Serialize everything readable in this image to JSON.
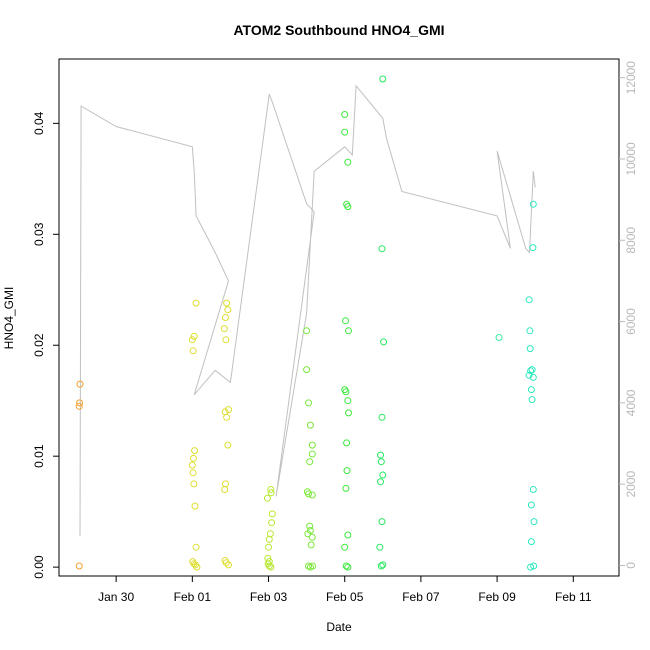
{
  "chart_data": {
    "type": "scatter",
    "title": "ATOM2 Southbound HNO4_GMI",
    "xlabel": "Date",
    "ylabel": "HNO4_GMI",
    "x_unit": "days from Jan 30",
    "x_ticks": [
      {
        "label": "Jan 30",
        "value": 0
      },
      {
        "label": "Feb 01",
        "value": 2
      },
      {
        "label": "Feb 03",
        "value": 4
      },
      {
        "label": "Feb 05",
        "value": 6
      },
      {
        "label": "Feb 07",
        "value": 8
      },
      {
        "label": "Feb 09",
        "value": 10
      },
      {
        "label": "Feb 11",
        "value": 12
      }
    ],
    "ylim": [
      -0.0008,
      0.0458
    ],
    "y_ticks": [
      0.0,
      0.01,
      0.02,
      0.03,
      0.04
    ],
    "y_tick_labels": [
      "0.00",
      "0.01",
      "0.02",
      "0.03",
      "0.04"
    ],
    "y2lim": [
      -260,
      12460
    ],
    "y2_ticks": [
      0,
      2000,
      4000,
      6000,
      8000,
      10000,
      12000
    ],
    "y2_tick_labels": [
      "0",
      "2000",
      "4000",
      "6000",
      "8000",
      "10000",
      "12000"
    ],
    "grid": false,
    "colors": {
      "line": "#c0c0c0",
      "right_axis": "#b8b8b8",
      "axis": "#000000"
    },
    "points": [
      {
        "x": -0.97,
        "y": 0.0145,
        "color": "#f5a030"
      },
      {
        "x": -0.96,
        "y": 0.0148,
        "color": "#f5a030"
      },
      {
        "x": -0.95,
        "y": 0.0165,
        "color": "#f5a030"
      },
      {
        "x": -0.97,
        "y": 0.0001,
        "color": "#f5a030"
      },
      {
        "x": 2.0,
        "y": 0.0205,
        "color": "#dede33"
      },
      {
        "x": 2.02,
        "y": 0.0195,
        "color": "#dede33"
      },
      {
        "x": 2.05,
        "y": 0.0208,
        "color": "#dede33"
      },
      {
        "x": 2.1,
        "y": 0.0238,
        "color": "#dede33"
      },
      {
        "x": 2.06,
        "y": 0.0105,
        "color": "#dede33"
      },
      {
        "x": 2.03,
        "y": 0.0098,
        "color": "#dede33"
      },
      {
        "x": 2.0,
        "y": 0.0092,
        "color": "#dede33"
      },
      {
        "x": 2.02,
        "y": 0.0085,
        "color": "#dede33"
      },
      {
        "x": 2.04,
        "y": 0.0075,
        "color": "#dede33"
      },
      {
        "x": 2.07,
        "y": 0.0055,
        "color": "#dede33"
      },
      {
        "x": 2.1,
        "y": 0.0018,
        "color": "#dede33"
      },
      {
        "x": 2.01,
        "y": 0.0005,
        "color": "#dede33"
      },
      {
        "x": 2.04,
        "y": 0.0003,
        "color": "#dede33"
      },
      {
        "x": 2.08,
        "y": 0.0002,
        "color": "#dede33"
      },
      {
        "x": 2.12,
        "y": 0.0,
        "color": "#dede33"
      },
      {
        "x": 2.84,
        "y": 0.0215,
        "color": "#dede33"
      },
      {
        "x": 2.87,
        "y": 0.0225,
        "color": "#dede33"
      },
      {
        "x": 2.9,
        "y": 0.0238,
        "color": "#dede33"
      },
      {
        "x": 2.93,
        "y": 0.0232,
        "color": "#dede33"
      },
      {
        "x": 2.88,
        "y": 0.0205,
        "color": "#dede33"
      },
      {
        "x": 2.86,
        "y": 0.014,
        "color": "#dede33"
      },
      {
        "x": 2.9,
        "y": 0.0135,
        "color": "#dede33"
      },
      {
        "x": 2.95,
        "y": 0.0142,
        "color": "#dede33"
      },
      {
        "x": 2.93,
        "y": 0.011,
        "color": "#dede33"
      },
      {
        "x": 2.87,
        "y": 0.0075,
        "color": "#dede33"
      },
      {
        "x": 2.85,
        "y": 0.007,
        "color": "#dede33"
      },
      {
        "x": 2.86,
        "y": 0.0006,
        "color": "#dede33"
      },
      {
        "x": 2.89,
        "y": 0.0004,
        "color": "#dede33"
      },
      {
        "x": 2.95,
        "y": 0.0002,
        "color": "#dede33"
      },
      {
        "x": 3.97,
        "y": 0.0062,
        "color": "#b8e830"
      },
      {
        "x": 4.06,
        "y": 0.007,
        "color": "#b8e830"
      },
      {
        "x": 4.07,
        "y": 0.0067,
        "color": "#b8e830"
      },
      {
        "x": 4.1,
        "y": 0.0048,
        "color": "#b8e830"
      },
      {
        "x": 4.08,
        "y": 0.004,
        "color": "#b8e830"
      },
      {
        "x": 4.05,
        "y": 0.003,
        "color": "#b8e830"
      },
      {
        "x": 4.02,
        "y": 0.0025,
        "color": "#b8e830"
      },
      {
        "x": 4.0,
        "y": 0.0018,
        "color": "#b8e830"
      },
      {
        "x": 3.98,
        "y": 0.0008,
        "color": "#b8e830"
      },
      {
        "x": 3.99,
        "y": 0.0003,
        "color": "#b8e830"
      },
      {
        "x": 4.02,
        "y": 0.0001,
        "color": "#b8e830"
      },
      {
        "x": 4.06,
        "y": 0.0,
        "color": "#b8e830"
      },
      {
        "x": 4.02,
        "y": 0.0005,
        "color": "#b8e830"
      },
      {
        "x": 5.0,
        "y": 0.0213,
        "color": "#7ae83a"
      },
      {
        "x": 5.0,
        "y": 0.0178,
        "color": "#7ae83a"
      },
      {
        "x": 5.05,
        "y": 0.0148,
        "color": "#7ae83a"
      },
      {
        "x": 5.1,
        "y": 0.0128,
        "color": "#7ae83a"
      },
      {
        "x": 5.15,
        "y": 0.011,
        "color": "#7ae83a"
      },
      {
        "x": 5.15,
        "y": 0.0102,
        "color": "#7ae83a"
      },
      {
        "x": 5.08,
        "y": 0.0095,
        "color": "#7ae83a"
      },
      {
        "x": 5.02,
        "y": 0.0068,
        "color": "#7ae83a"
      },
      {
        "x": 5.05,
        "y": 0.0066,
        "color": "#7ae83a"
      },
      {
        "x": 5.15,
        "y": 0.0065,
        "color": "#7ae83a"
      },
      {
        "x": 5.08,
        "y": 0.0037,
        "color": "#7ae83a"
      },
      {
        "x": 5.1,
        "y": 0.0033,
        "color": "#7ae83a"
      },
      {
        "x": 5.03,
        "y": 0.003,
        "color": "#7ae83a"
      },
      {
        "x": 5.15,
        "y": 0.0027,
        "color": "#7ae83a"
      },
      {
        "x": 5.12,
        "y": 0.002,
        "color": "#7ae83a"
      },
      {
        "x": 5.05,
        "y": 0.0001,
        "color": "#7ae83a"
      },
      {
        "x": 5.1,
        "y": 0.0,
        "color": "#7ae83a"
      },
      {
        "x": 5.16,
        "y": 0.0001,
        "color": "#7ae83a"
      },
      {
        "x": 6.0,
        "y": 0.0408,
        "color": "#3de83d"
      },
      {
        "x": 6.0,
        "y": 0.0392,
        "color": "#3de83d"
      },
      {
        "x": 6.08,
        "y": 0.0365,
        "color": "#3de83d"
      },
      {
        "x": 6.05,
        "y": 0.0327,
        "color": "#3de83d"
      },
      {
        "x": 6.08,
        "y": 0.0325,
        "color": "#3de83d"
      },
      {
        "x": 6.02,
        "y": 0.0222,
        "color": "#3de83d"
      },
      {
        "x": 6.1,
        "y": 0.0213,
        "color": "#3de83d"
      },
      {
        "x": 6.0,
        "y": 0.016,
        "color": "#3de83d"
      },
      {
        "x": 6.03,
        "y": 0.0158,
        "color": "#3de83d"
      },
      {
        "x": 6.08,
        "y": 0.015,
        "color": "#3de83d"
      },
      {
        "x": 6.1,
        "y": 0.0139,
        "color": "#3de83d"
      },
      {
        "x": 6.05,
        "y": 0.0112,
        "color": "#3de83d"
      },
      {
        "x": 6.06,
        "y": 0.0087,
        "color": "#3de83d"
      },
      {
        "x": 6.03,
        "y": 0.0071,
        "color": "#3de83d"
      },
      {
        "x": 6.08,
        "y": 0.0029,
        "color": "#3de83d"
      },
      {
        "x": 6.0,
        "y": 0.0018,
        "color": "#3de83d"
      },
      {
        "x": 6.04,
        "y": 0.0001,
        "color": "#3de83d"
      },
      {
        "x": 6.08,
        "y": 0.0,
        "color": "#3de83d"
      },
      {
        "x": 7.0,
        "y": 0.044,
        "color": "#28e860"
      },
      {
        "x": 6.98,
        "y": 0.0287,
        "color": "#28e860"
      },
      {
        "x": 7.02,
        "y": 0.0203,
        "color": "#28e860"
      },
      {
        "x": 6.98,
        "y": 0.0135,
        "color": "#28e860"
      },
      {
        "x": 6.94,
        "y": 0.0101,
        "color": "#28e860"
      },
      {
        "x": 6.96,
        "y": 0.0095,
        "color": "#28e860"
      },
      {
        "x": 7.0,
        "y": 0.0083,
        "color": "#28e860"
      },
      {
        "x": 6.94,
        "y": 0.0077,
        "color": "#28e860"
      },
      {
        "x": 6.98,
        "y": 0.0041,
        "color": "#28e860"
      },
      {
        "x": 6.92,
        "y": 0.0018,
        "color": "#28e860"
      },
      {
        "x": 6.96,
        "y": 0.0001,
        "color": "#28e860"
      },
      {
        "x": 7.0,
        "y": 0.0002,
        "color": "#28e860"
      },
      {
        "x": 10.05,
        "y": 0.0207,
        "color": "#3de8a0"
      },
      {
        "x": 10.84,
        "y": 0.0241,
        "color": "#2ee8c0"
      },
      {
        "x": 10.86,
        "y": 0.0213,
        "color": "#2ee8c0"
      },
      {
        "x": 10.87,
        "y": 0.0197,
        "color": "#2ee8c0"
      },
      {
        "x": 10.84,
        "y": 0.0173,
        "color": "#2ee8c0"
      },
      {
        "x": 10.88,
        "y": 0.0177,
        "color": "#2ee8c0"
      },
      {
        "x": 10.92,
        "y": 0.0178,
        "color": "#2ee8c0"
      },
      {
        "x": 10.95,
        "y": 0.0171,
        "color": "#2ee8c0"
      },
      {
        "x": 10.9,
        "y": 0.016,
        "color": "#2ee8c0"
      },
      {
        "x": 10.92,
        "y": 0.0151,
        "color": "#2ee8c0"
      },
      {
        "x": 10.95,
        "y": 0.0327,
        "color": "#2ee8c0"
      },
      {
        "x": 10.94,
        "y": 0.0288,
        "color": "#2ee8c0"
      },
      {
        "x": 10.95,
        "y": 0.007,
        "color": "#2ee8c0"
      },
      {
        "x": 10.9,
        "y": 0.0056,
        "color": "#2ee8c0"
      },
      {
        "x": 10.97,
        "y": 0.0041,
        "color": "#2ee8c0"
      },
      {
        "x": 10.9,
        "y": 0.0023,
        "color": "#2ee8c0"
      },
      {
        "x": 10.88,
        "y": 0.0,
        "color": "#2ee8c0"
      },
      {
        "x": 10.96,
        "y": 0.0001,
        "color": "#2ee8c0"
      }
    ],
    "line_y2": [
      [
        -0.95,
        720
      ],
      [
        -0.92,
        11300
      ],
      [
        0.0,
        10800
      ],
      [
        2.0,
        10300
      ],
      [
        2.05,
        9700
      ],
      [
        2.1,
        8600
      ],
      [
        2.6,
        7700
      ],
      [
        2.95,
        7000
      ],
      [
        2.05,
        4200
      ],
      [
        2.6,
        4800
      ],
      [
        3.0,
        4500
      ],
      [
        4.02,
        11600
      ],
      [
        4.1,
        11400
      ],
      [
        5.0,
        8900
      ],
      [
        5.2,
        8700
      ],
      [
        4.2,
        1700
      ],
      [
        5.0,
        6200
      ],
      [
        5.2,
        9700
      ],
      [
        6.0,
        10300
      ],
      [
        6.2,
        10100
      ],
      [
        6.3,
        11800
      ],
      [
        7.0,
        11000
      ],
      [
        7.1,
        10500
      ],
      [
        7.5,
        9200
      ],
      [
        10.0,
        8600
      ],
      [
        10.35,
        7800
      ],
      [
        10.0,
        10200
      ],
      [
        10.75,
        7800
      ],
      [
        10.85,
        7700
      ],
      [
        10.95,
        9700
      ],
      [
        11.0,
        9300
      ]
    ]
  }
}
